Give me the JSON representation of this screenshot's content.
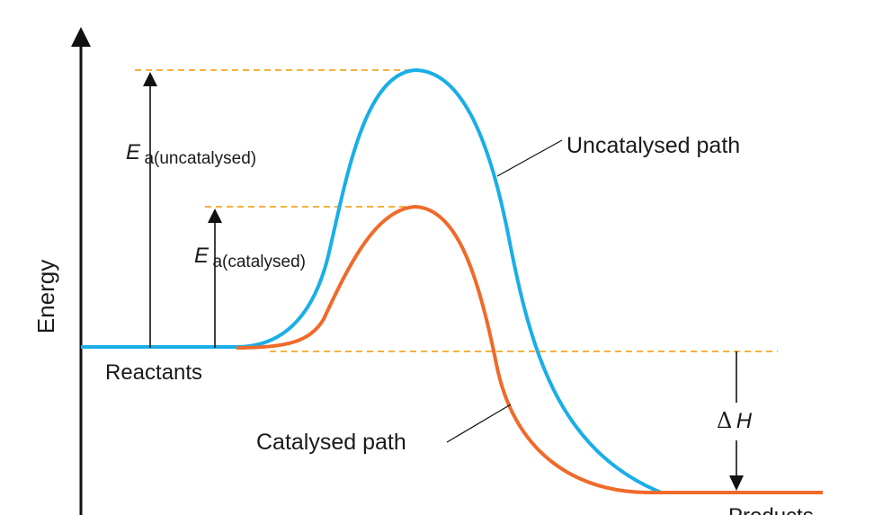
{
  "diagram": {
    "y_axis_label": "Energy",
    "curves": {
      "uncatalysed_label": "Uncatalysed path",
      "catalysed_label": "Catalysed path",
      "uncatalysed_color": "#1aaee8",
      "catalysed_color": "#f06a2a"
    },
    "guide_color": "#f5a623",
    "states": {
      "reactants": "Reactants",
      "products": "Products"
    },
    "activation_energy": {
      "uncatalysed_symbol": "E",
      "uncatalysed_subscript": "a(uncatalysed)",
      "catalysed_symbol": "E",
      "catalysed_subscript": "a(catalysed)"
    },
    "enthalpy_change": {
      "delta": "Δ",
      "symbol": "H"
    }
  }
}
